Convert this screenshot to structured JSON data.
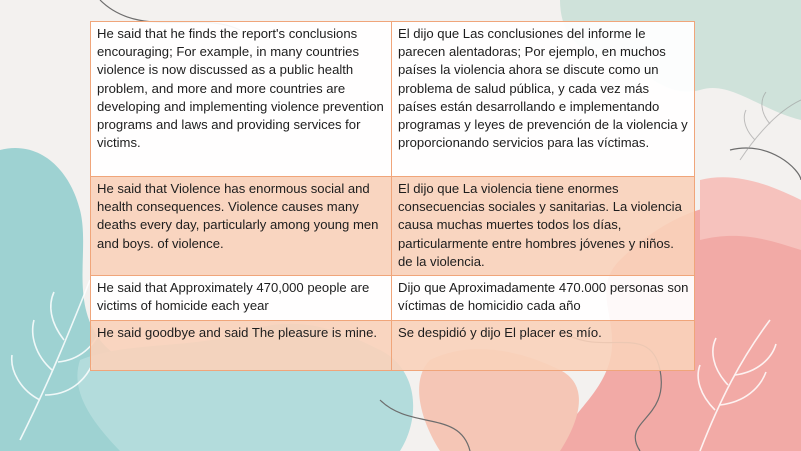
{
  "table": {
    "rows": [
      {
        "en": "He said that he finds the report's conclusions encouraging; For example, in many countries violence is now discussed as a public health problem, and more and more countries are developing and implementing violence prevention programs and laws and providing services for victims.",
        "es": "El dijo que Las conclusiones del informe le parecen alentadoras; Por ejemplo, en muchos países la violencia ahora se discute como un problema de salud pública, y cada vez más países están desarrollando e implementando programas y leyes de prevención de la violencia y proporcionando servicios para las víctimas."
      },
      {
        "en": "He said that Violence has enormous social and health consequences. Violence causes many deaths every day, particularly among young men and boys. of violence.",
        "es": "El dijo que La violencia tiene enormes consecuencias sociales y sanitarias. La violencia causa muchas muertes todos los días, particularmente entre hombres jóvenes y niños. de la violencia."
      },
      {
        "en": "He said that Approximately 470,000 people are victims of homicide each year",
        "es": "Dijo que Aproximadamente 470.000 personas son víctimas de homicidio cada año"
      },
      {
        "en": "He said goodbye and said The pleasure is mine.",
        "es": "Se despidió y dijo El placer es mío."
      }
    ]
  },
  "colors": {
    "background": "#f3f1ef",
    "border": "#f0a57a",
    "row_alt": "#f9d1ba",
    "teal_shape": "#9fd3d3",
    "pink_shape": "#f3a9a6",
    "sage_shape": "#c9ddd5"
  }
}
